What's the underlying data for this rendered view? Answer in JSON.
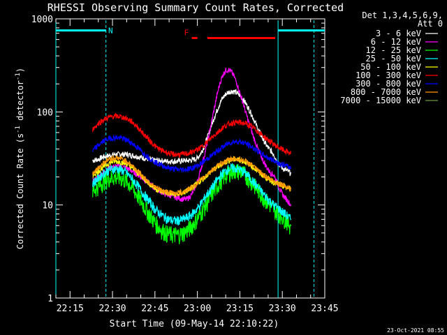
{
  "chart_data": {
    "type": "line",
    "title": "RHESSI Observing Summary Count Rates, Corrected",
    "xlabel": "Start Time (09-May-14 22:10:22)",
    "ylabel_main": "Corrected Count Rate (s",
    "ylabel_sup1": "-1",
    "ylabel_mid": " detector",
    "ylabel_sup2": "-1",
    "ylabel_end": ")",
    "y_scale": "log",
    "ylim": [
      1,
      1000
    ],
    "xlim_minutes": [
      0,
      95
    ],
    "y_ticks": [
      {
        "value": 1,
        "label": "1"
      },
      {
        "value": 10,
        "label": "10"
      },
      {
        "value": 100,
        "label": "100"
      },
      {
        "value": 1000,
        "label": "1000"
      }
    ],
    "x_ticks": [
      {
        "minute": 5,
        "label": "22:15"
      },
      {
        "minute": 20,
        "label": "22:30"
      },
      {
        "minute": 35,
        "label": "22:45"
      },
      {
        "minute": 50,
        "label": "23:00"
      },
      {
        "minute": 65,
        "label": "23:15"
      },
      {
        "minute": 80,
        "label": "23:30"
      },
      {
        "minute": 95,
        "label": "23:45"
      }
    ],
    "legend": {
      "placement": "right",
      "header1": "Det 1,3,4,5,6,9,",
      "header2": "Att 0"
    },
    "flags": {
      "saa_segments": [
        [
          0,
          17.7
        ],
        [
          78.5,
          95
        ]
      ],
      "night_label": "N",
      "night_label_minute": 18,
      "flare_label": "F",
      "flare_segments": [
        [
          48,
          50
        ],
        [
          53.5,
          77.5
        ]
      ],
      "flags_level": 750,
      "cyan_vlines": [
        0,
        17.7,
        78.5,
        91.2
      ],
      "saa_color": "#00ffff",
      "flare_color": "#ff0000"
    },
    "footer_timestamp": "23-Oct-2021 08:55",
    "series": [
      {
        "name": "3 - 6 keV",
        "color": "#ffffff",
        "x": [
          13,
          15,
          17,
          19,
          21,
          23,
          25,
          27,
          29,
          31,
          33,
          35,
          37,
          39,
          41,
          43,
          45,
          47,
          49,
          50,
          51,
          52,
          53,
          54,
          55,
          56,
          57,
          58,
          59,
          60,
          61,
          62,
          63,
          64,
          65,
          66,
          67,
          68,
          69,
          70,
          71,
          72,
          73,
          74,
          75,
          76,
          77,
          78,
          79,
          80,
          81,
          82,
          83
        ],
        "y": [
          30,
          31,
          33,
          34,
          35,
          35,
          35,
          34,
          33,
          32,
          31,
          30,
          30,
          29.5,
          29.5,
          29.5,
          30,
          30,
          31,
          32,
          35,
          40,
          48,
          58,
          72,
          88,
          105,
          125,
          142,
          155,
          163,
          167,
          165,
          160,
          150,
          138,
          125,
          110,
          96,
          82,
          70,
          60,
          52,
          46,
          41,
          38,
          35,
          30,
          27,
          25,
          24,
          23,
          22
        ]
      },
      {
        "name": "6 - 12 keV",
        "color": "#ff00ff",
        "x": [
          13,
          15,
          17,
          19,
          21,
          23,
          25,
          27,
          29,
          31,
          33,
          35,
          37,
          39,
          41,
          43,
          45,
          46,
          47,
          48,
          49,
          50,
          51,
          52,
          53,
          54,
          55,
          56,
          57,
          58,
          59,
          60,
          61,
          62,
          63,
          64,
          65,
          66,
          67,
          68,
          69,
          70,
          71,
          72,
          73,
          74,
          75,
          76,
          77,
          78,
          79,
          80,
          81,
          82,
          83
        ],
        "y": [
          18,
          20,
          23,
          25,
          26,
          26,
          25,
          23,
          21,
          19,
          17,
          15,
          14,
          13,
          12.5,
          12,
          11.5,
          11.5,
          12,
          13,
          15,
          18,
          23,
          30,
          40,
          55,
          78,
          110,
          155,
          205,
          250,
          280,
          285,
          270,
          240,
          200,
          160,
          130,
          100,
          80,
          64,
          52,
          43,
          36,
          31,
          27,
          24,
          22,
          21,
          18,
          15,
          13,
          12,
          11,
          10
        ]
      },
      {
        "name": "12 - 25 keV",
        "color": "#00ff00",
        "x": [
          13,
          15,
          17,
          19,
          21,
          23,
          25,
          27,
          29,
          31,
          33,
          35,
          37,
          39,
          41,
          43,
          45,
          47,
          49,
          51,
          53,
          55,
          57,
          59,
          61,
          63,
          65,
          67,
          69,
          71,
          73,
          75,
          77,
          79,
          81,
          83
        ],
        "y": [
          14,
          16,
          18,
          19.5,
          20,
          19.5,
          18,
          15.5,
          12.5,
          10,
          8,
          6.5,
          5.5,
          5,
          4.8,
          4.8,
          5,
          5.5,
          6.5,
          8,
          10,
          13,
          16,
          19.5,
          22,
          23.5,
          23,
          21,
          18,
          15,
          12.5,
          10.5,
          9,
          8,
          7,
          6
        ]
      },
      {
        "name": "25 - 50 keV",
        "color": "#00ffff",
        "x": [
          13,
          15,
          17,
          19,
          21,
          23,
          25,
          27,
          29,
          31,
          33,
          35,
          37,
          39,
          41,
          43,
          45,
          47,
          49,
          51,
          53,
          55,
          57,
          59,
          61,
          63,
          65,
          67,
          69,
          71,
          73,
          75,
          77,
          79,
          81,
          83
        ],
        "y": [
          17,
          19.5,
          22,
          24,
          24.5,
          24,
          22,
          19,
          16,
          13,
          11,
          9,
          8,
          7.2,
          6.8,
          6.8,
          7,
          7.5,
          8.5,
          10,
          12.5,
          15,
          18.5,
          22,
          24.5,
          25,
          24,
          22,
          19,
          16,
          13.5,
          11.5,
          10,
          9,
          8,
          7
        ]
      },
      {
        "name": "50 - 100 keV",
        "color": "#ffff00",
        "x": [
          13,
          15,
          17,
          19,
          21,
          23,
          25,
          27,
          29,
          31,
          33,
          35,
          37,
          39,
          41,
          43,
          45,
          47,
          49,
          51,
          53,
          55,
          57,
          59,
          61,
          63,
          65,
          67,
          69,
          71,
          73,
          75,
          77,
          79,
          81,
          83
        ],
        "y": [
          21,
          23,
          26,
          28.5,
          29.5,
          29,
          27.5,
          25,
          22,
          19.5,
          17,
          15,
          14,
          13.5,
          13,
          13,
          13.5,
          14.5,
          16,
          18,
          20.5,
          23,
          25.5,
          28,
          30,
          31,
          30.5,
          29,
          26.5,
          23.5,
          21,
          19,
          17.5,
          16.5,
          15.5,
          15
        ]
      },
      {
        "name": "100 - 300 keV",
        "color": "#ff0000",
        "x": [
          13,
          15,
          17,
          19,
          21,
          23,
          25,
          27,
          29,
          31,
          33,
          35,
          37,
          39,
          41,
          43,
          45,
          47,
          49,
          51,
          53,
          55,
          57,
          59,
          61,
          63,
          65,
          67,
          69,
          71,
          73,
          75,
          77,
          79,
          81,
          83
        ],
        "y": [
          65,
          75,
          83,
          88,
          90,
          89,
          85,
          78,
          68,
          58,
          50,
          43,
          39,
          37,
          35,
          35,
          35,
          36,
          38,
          41,
          46,
          53,
          60,
          68,
          74,
          77,
          77,
          75,
          70,
          63,
          56,
          50,
          45,
          41,
          38,
          36
        ]
      },
      {
        "name": "300 - 800 keV",
        "color": "#0000ff",
        "x": [
          13,
          15,
          17,
          19,
          21,
          23,
          25,
          27,
          29,
          31,
          33,
          35,
          37,
          39,
          41,
          43,
          45,
          47,
          49,
          51,
          53,
          55,
          57,
          59,
          61,
          63,
          65,
          67,
          69,
          71,
          73,
          75,
          77,
          79,
          81,
          83
        ],
        "y": [
          38,
          44,
          49,
          52,
          53,
          52.5,
          50,
          46,
          41,
          36,
          32,
          29,
          27,
          25.5,
          24.5,
          24,
          24,
          24.5,
          25.5,
          27.5,
          30.5,
          34,
          38,
          42,
          46,
          48,
          48,
          46,
          42.5,
          38.5,
          35,
          32,
          30,
          28,
          26.5,
          25
        ]
      },
      {
        "name": "800 - 7000 keV",
        "color": "#ff9900",
        "x": [
          13,
          15,
          17,
          19,
          21,
          23,
          25,
          27,
          29,
          31,
          33,
          35,
          37,
          39,
          41,
          43,
          45,
          47,
          49,
          51,
          53,
          55,
          57,
          59,
          61,
          63,
          65,
          67,
          69,
          71,
          73,
          75,
          77,
          79,
          81,
          83
        ],
        "y": [
          22,
          25,
          29,
          31.5,
          32,
          31.5,
          29.5,
          26.5,
          23,
          20,
          17.5,
          15.5,
          14.5,
          13.8,
          13.5,
          13.5,
          13.8,
          14.8,
          16.2,
          18.2,
          20.8,
          23.5,
          26,
          28.5,
          30.5,
          31.5,
          31,
          29.5,
          27,
          24,
          21.5,
          19.5,
          18,
          17,
          16,
          15
        ]
      },
      {
        "name": "7000 - 15000 keV",
        "color": "#669933",
        "x": [],
        "y": []
      }
    ]
  }
}
